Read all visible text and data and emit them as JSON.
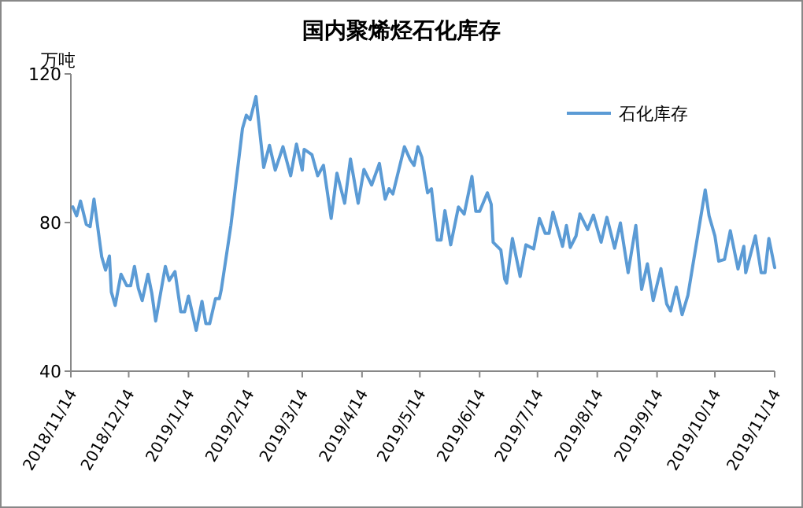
{
  "chart_data": {
    "type": "line",
    "title": "国内聚烯烃石化库存",
    "ylabel": "万吨",
    "legend": "top right",
    "marker": "none",
    "line_style": "solid",
    "xlim": [
      "2018-11-14",
      "2019-11-14"
    ],
    "xticks": [
      {
        "value": "2018-11-14",
        "label": "2018/11/14"
      },
      {
        "value": "2018-12-14",
        "label": "2018/12/14"
      },
      {
        "value": "2019-01-14",
        "label": "2019/1/14"
      },
      {
        "value": "2019-02-14",
        "label": "2019/2/14"
      },
      {
        "value": "2019-03-14",
        "label": "2019/3/14"
      },
      {
        "value": "2019-04-14",
        "label": "2019/4/14"
      },
      {
        "value": "2019-05-14",
        "label": "2019/5/14"
      },
      {
        "value": "2019-06-14",
        "label": "2019/6/14"
      },
      {
        "value": "2019-07-14",
        "label": "2019/7/14"
      },
      {
        "value": "2019-08-14",
        "label": "2019/8/14"
      },
      {
        "value": "2019-09-14",
        "label": "2019/9/14"
      },
      {
        "value": "2019-10-14",
        "label": "2019/10/14"
      },
      {
        "value": "2019-11-14",
        "label": "2019/11/14"
      }
    ],
    "ylim": [
      40,
      120
    ],
    "yticks": [
      40,
      80,
      120
    ],
    "x": [
      "2018-11-15",
      "2018-11-17",
      "2018-11-19",
      "2018-11-22",
      "2018-11-24",
      "2018-11-26",
      "2018-11-30",
      "2018-12-02",
      "2018-12-04",
      "2018-12-05",
      "2018-12-07",
      "2018-12-10",
      "2018-12-13",
      "2018-12-15",
      "2018-12-17",
      "2018-12-19",
      "2018-12-21",
      "2018-12-24",
      "2018-12-26",
      "2018-12-28",
      "2019-01-02",
      "2019-01-04",
      "2019-01-07",
      "2019-01-10",
      "2019-01-12",
      "2019-01-14",
      "2019-01-18",
      "2019-01-21",
      "2019-01-23",
      "2019-01-25",
      "2019-01-28",
      "2019-01-30",
      "2019-01-31",
      "2019-02-05",
      "2019-02-11",
      "2019-02-13",
      "2019-02-15",
      "2019-02-18",
      "2019-02-22",
      "2019-02-25",
      "2019-02-28",
      "2019-03-04",
      "2019-03-08",
      "2019-03-11",
      "2019-03-14",
      "2019-03-15",
      "2019-03-19",
      "2019-03-22",
      "2019-03-25",
      "2019-03-29",
      "2019-04-01",
      "2019-04-05",
      "2019-04-08",
      "2019-04-12",
      "2019-04-15",
      "2019-04-19",
      "2019-04-23",
      "2019-04-26",
      "2019-04-28",
      "2019-04-30",
      "2019-05-06",
      "2019-05-09",
      "2019-05-11",
      "2019-05-13",
      "2019-05-15",
      "2019-05-18",
      "2019-05-20",
      "2019-05-23",
      "2019-05-25",
      "2019-05-27",
      "2019-05-30",
      "2019-06-03",
      "2019-06-06",
      "2019-06-10",
      "2019-06-12",
      "2019-06-14",
      "2019-06-18",
      "2019-06-20",
      "2019-06-21",
      "2019-06-25",
      "2019-06-27",
      "2019-06-28",
      "2019-07-01",
      "2019-07-05",
      "2019-07-08",
      "2019-07-12",
      "2019-07-15",
      "2019-07-18",
      "2019-07-20",
      "2019-07-22",
      "2019-07-27",
      "2019-07-29",
      "2019-07-31",
      "2019-08-03",
      "2019-08-05",
      "2019-08-09",
      "2019-08-12",
      "2019-08-16",
      "2019-08-19",
      "2019-08-23",
      "2019-08-26",
      "2019-08-30",
      "2019-09-03",
      "2019-09-06",
      "2019-09-09",
      "2019-09-12",
      "2019-09-16",
      "2019-09-19",
      "2019-09-21",
      "2019-09-24",
      "2019-09-27",
      "2019-09-30",
      "2019-10-09",
      "2019-10-11",
      "2019-10-14",
      "2019-10-16",
      "2019-10-19",
      "2019-10-22",
      "2019-10-26",
      "2019-10-29",
      "2019-10-30",
      "2019-11-04",
      "2019-11-07",
      "2019-11-09",
      "2019-11-11",
      "2019-11-14"
    ],
    "series": [
      {
        "name": "石化库存",
        "color": "#5b9bd5",
        "values": [
          84.2,
          81.8,
          85.8,
          79.5,
          78.9,
          86.3,
          70.8,
          67.2,
          71.0,
          61.3,
          57.7,
          66.1,
          63.0,
          63.0,
          68.2,
          62.3,
          59.0,
          66.1,
          60.9,
          53.5,
          68.2,
          64.4,
          66.8,
          56.0,
          56.0,
          60.2,
          51.0,
          58.8,
          52.8,
          52.8,
          59.5,
          59.5,
          61.9,
          79.2,
          105.3,
          108.9,
          107.7,
          113.9,
          94.8,
          100.8,
          94.1,
          100.4,
          92.6,
          101.1,
          94.1,
          99.7,
          98.3,
          92.6,
          95.4,
          81.1,
          93.3,
          85.2,
          97.1,
          85.2,
          94.3,
          90.1,
          95.9,
          86.3,
          89.1,
          87.7,
          100.4,
          96.9,
          95.4,
          100.4,
          97.6,
          88.0,
          89.1,
          75.3,
          75.3,
          83.2,
          74.0,
          84.2,
          82.3,
          92.4,
          83.0,
          83.0,
          88.0,
          84.9,
          74.7,
          72.6,
          64.8,
          63.7,
          75.7,
          65.5,
          74.0,
          72.9,
          81.1,
          77.1,
          77.1,
          82.8,
          73.6,
          79.2,
          73.3,
          76.4,
          82.3,
          78.1,
          82.0,
          74.7,
          81.4,
          73.1,
          79.9,
          66.5,
          79.2,
          62.0,
          68.9,
          59.0,
          67.6,
          58.1,
          56.2,
          62.6,
          55.2,
          60.4,
          88.8,
          81.8,
          76.4,
          69.6,
          70.1,
          77.8,
          67.5,
          73.6,
          66.5,
          76.4,
          66.5,
          66.5,
          75.7,
          67.9
        ]
      }
    ]
  }
}
